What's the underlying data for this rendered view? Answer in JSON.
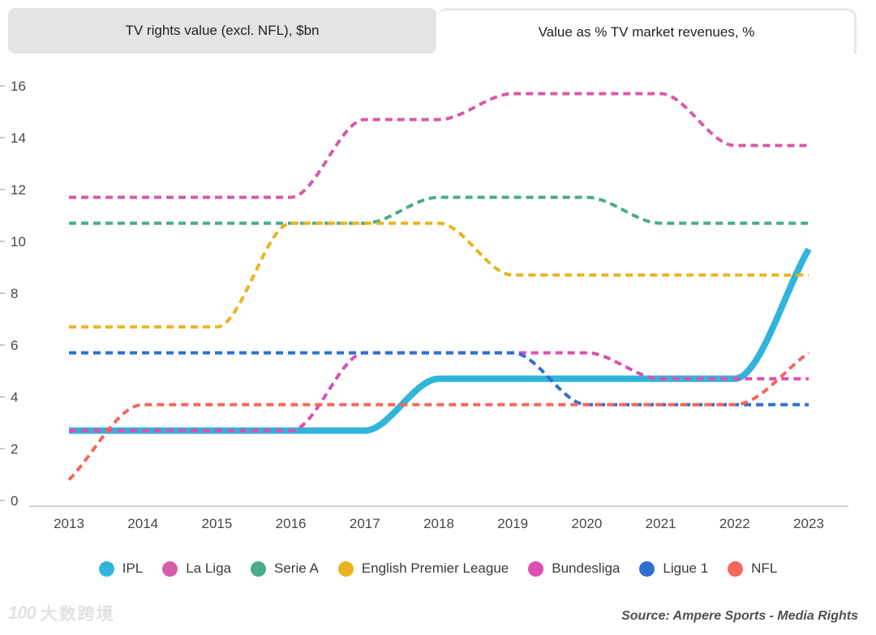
{
  "tabs": [
    {
      "label": "TV rights value (excl. NFL), $bn",
      "active": false
    },
    {
      "label": "Value as % TV market revenues, %",
      "active": true
    }
  ],
  "watermark": {
    "logo": "100",
    "text": "大数跨境"
  },
  "source": "Source: Ampere Sports - Media Rights",
  "chart_data": {
    "type": "line",
    "title": "Value as % TV market revenues, %",
    "xlabel": "",
    "ylabel": "",
    "x_ticks": [
      2013,
      2014,
      2015,
      2016,
      2017,
      2018,
      2019,
      2020,
      2021,
      2022,
      2023
    ],
    "yticks": [
      0,
      2,
      4,
      6,
      8,
      10,
      12,
      14,
      16
    ],
    "ylim": [
      0,
      16
    ],
    "xlim": [
      2013,
      2023
    ],
    "grid": false,
    "legend_position": "bottom",
    "axis_color": "#cdcdcd",
    "tick_label_color": "#474747",
    "series": [
      {
        "name": "IPL",
        "color": "#31b4da",
        "style": "solid",
        "width": 8,
        "points": [
          [
            2013,
            2.7
          ],
          [
            2014,
            2.7
          ],
          [
            2015,
            2.7
          ],
          [
            2016,
            2.7
          ],
          [
            2017,
            2.7
          ],
          [
            2018,
            4.7
          ],
          [
            2019,
            4.7
          ],
          [
            2020,
            4.7
          ],
          [
            2021,
            4.7
          ],
          [
            2022,
            4.7
          ],
          [
            2023,
            9.7
          ]
        ]
      },
      {
        "name": "La Liga",
        "color": "#d75ba8",
        "style": "dashed",
        "width": 4,
        "points": [
          [
            2013,
            11.7
          ],
          [
            2014,
            11.7
          ],
          [
            2015,
            11.7
          ],
          [
            2016,
            11.7
          ],
          [
            2017,
            14.7
          ],
          [
            2018,
            14.7
          ],
          [
            2019,
            15.7
          ],
          [
            2020,
            15.7
          ],
          [
            2021,
            15.7
          ],
          [
            2022,
            13.7
          ],
          [
            2023,
            13.7
          ]
        ]
      },
      {
        "name": "Serie A",
        "color": "#4bab8b",
        "style": "dashed",
        "width": 4,
        "points": [
          [
            2013,
            10.7
          ],
          [
            2014,
            10.7
          ],
          [
            2015,
            10.7
          ],
          [
            2016,
            10.7
          ],
          [
            2017,
            10.7
          ],
          [
            2018,
            11.7
          ],
          [
            2019,
            11.7
          ],
          [
            2020,
            11.7
          ],
          [
            2021,
            10.7
          ],
          [
            2022,
            10.7
          ],
          [
            2023,
            10.7
          ]
        ]
      },
      {
        "name": "English Premier League",
        "color": "#e9b420",
        "style": "dashed",
        "width": 4,
        "points": [
          [
            2013,
            6.7
          ],
          [
            2014,
            6.7
          ],
          [
            2015,
            6.7
          ],
          [
            2016,
            10.7
          ],
          [
            2017,
            10.7
          ],
          [
            2018,
            10.7
          ],
          [
            2019,
            8.7
          ],
          [
            2020,
            8.7
          ],
          [
            2021,
            8.7
          ],
          [
            2022,
            8.7
          ],
          [
            2023,
            8.7
          ]
        ]
      },
      {
        "name": "Bundesliga",
        "color": "#db4fb2",
        "style": "dashed",
        "width": 4,
        "points": [
          [
            2013,
            2.7
          ],
          [
            2014,
            2.7
          ],
          [
            2015,
            2.7
          ],
          [
            2016,
            2.7
          ],
          [
            2017,
            5.7
          ],
          [
            2018,
            5.7
          ],
          [
            2019,
            5.7
          ],
          [
            2020,
            5.7
          ],
          [
            2021,
            4.7
          ],
          [
            2022,
            4.7
          ],
          [
            2023,
            4.7
          ]
        ]
      },
      {
        "name": "Ligue 1",
        "color": "#2f6fd1",
        "style": "dashed",
        "width": 4,
        "points": [
          [
            2013,
            5.7
          ],
          [
            2014,
            5.7
          ],
          [
            2015,
            5.7
          ],
          [
            2016,
            5.7
          ],
          [
            2017,
            5.7
          ],
          [
            2018,
            5.7
          ],
          [
            2019,
            5.7
          ],
          [
            2020,
            3.7
          ],
          [
            2021,
            3.7
          ],
          [
            2022,
            3.7
          ],
          [
            2023,
            3.7
          ]
        ]
      },
      {
        "name": "NFL",
        "color": "#f4675c",
        "style": "dashed",
        "width": 4,
        "points": [
          [
            2013,
            0.8
          ],
          [
            2014,
            3.7
          ],
          [
            2015,
            3.7
          ],
          [
            2016,
            3.7
          ],
          [
            2017,
            3.7
          ],
          [
            2018,
            3.7
          ],
          [
            2019,
            3.7
          ],
          [
            2020,
            3.7
          ],
          [
            2021,
            3.7
          ],
          [
            2022,
            3.7
          ],
          [
            2023,
            5.7
          ]
        ]
      }
    ]
  }
}
